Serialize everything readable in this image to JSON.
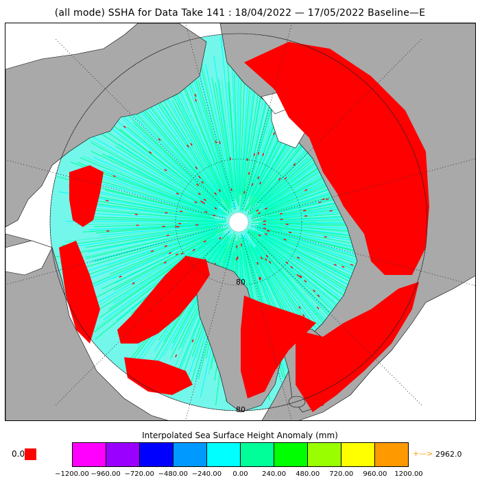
{
  "title": "(all mode) SSHA for Data Take 141 : 18/04/2022 — 17/05/2022 Baseline—E",
  "map": {
    "latitude_labels": [
      "80",
      "80"
    ],
    "colors": {
      "land": "#a9a9a9",
      "ocean": "#ffffff",
      "pole_gap": "#ffffff",
      "graticule": "#333333"
    }
  },
  "colorbar": {
    "title": "Interpolated Sea Surface Height Anomaly (mm)",
    "underflow_value": "0.0",
    "underflow_color": "#ff0000",
    "overflow_arrow": "+—>",
    "overflow_value": "2962.0",
    "overflow_color": "#ff9900",
    "colors": [
      "#ff00ff",
      "#9900ff",
      "#0000ff",
      "#0099ff",
      "#00ffff",
      "#00ff99",
      "#00ff00",
      "#99ff00",
      "#ffff00",
      "#ff9900"
    ],
    "ticks": [
      "−1200.00",
      "−960.00",
      "−720.00",
      "−480.00",
      "−240.00",
      "0.00",
      "240.00",
      "480.00",
      "720.00",
      "960.00",
      "1200.00"
    ]
  }
}
